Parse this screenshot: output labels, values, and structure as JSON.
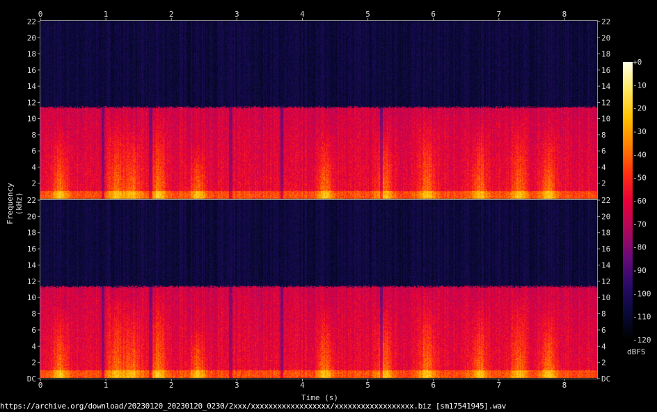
{
  "footer": "https://archive.org/download/20230120_20230120_0230/2xxx/xxxxxxxxxxxxxxxxxx/xxxxxxxxxxxxxxxxxx.biz [sm17541945].wav",
  "chart_data": {
    "type": "heatmap",
    "subtype": "spectrogram",
    "channels": 2,
    "xlabel": "Time (s)",
    "ylabel": "Frequency (kHz)",
    "xlim": [
      0,
      8.5
    ],
    "ylim": [
      0,
      22
    ],
    "x_ticks": [
      "0",
      "1",
      "2",
      "3",
      "4",
      "5",
      "6",
      "7",
      "8"
    ],
    "y_ticks_top": [
      "2",
      "4",
      "6",
      "8",
      "10",
      "12",
      "14",
      "16",
      "18",
      "20",
      "22"
    ],
    "y_ticks_bottom": [
      "DC",
      "2",
      "4",
      "6",
      "8",
      "10",
      "12",
      "14",
      "16",
      "18",
      "20",
      "22"
    ],
    "colorbar": {
      "unit": "dBFS",
      "range": [
        -120,
        0
      ],
      "ticks": [
        "+0",
        "-10",
        "-20",
        "-30",
        "-40",
        "-50",
        "-60",
        "-70",
        "-80",
        "-90",
        "-100",
        "-110",
        "-120"
      ],
      "colormap": [
        "#000000",
        "#0a0a3a",
        "#2a0a6a",
        "#6a0a7a",
        "#b0085a",
        "#e8003a",
        "#ff3010",
        "#ff8000",
        "#ffc000",
        "#ffe860",
        "#ffffe8"
      ]
    },
    "content_cutoff_khz": 11.2,
    "silence_gaps_s": [
      0.95,
      1.68,
      2.9,
      3.68,
      5.2
    ],
    "energy_bursts": [
      {
        "time": 0.3,
        "max_khz": 8
      },
      {
        "time": 1.15,
        "max_khz": 10
      },
      {
        "time": 1.4,
        "max_khz": 9
      },
      {
        "time": 1.8,
        "max_khz": 10
      },
      {
        "time": 2.4,
        "max_khz": 6
      },
      {
        "time": 4.35,
        "max_khz": 8
      },
      {
        "time": 5.25,
        "max_khz": 9
      },
      {
        "time": 5.9,
        "max_khz": 10
      },
      {
        "time": 6.7,
        "max_khz": 9
      },
      {
        "time": 7.3,
        "max_khz": 10
      },
      {
        "time": 7.75,
        "max_khz": 8
      }
    ]
  }
}
